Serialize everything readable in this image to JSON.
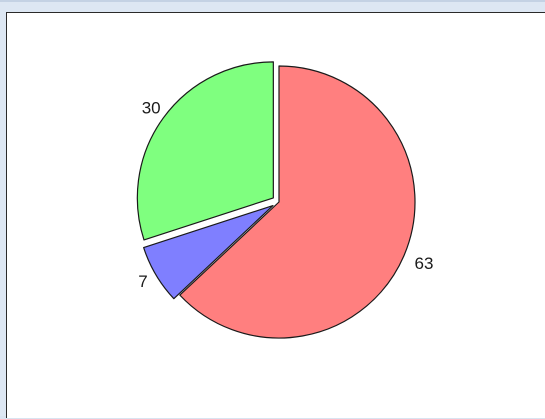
{
  "chart_data": {
    "type": "pie",
    "slices": [
      {
        "label": "63",
        "value": 63,
        "color": "#ff7f7f",
        "exploded": false
      },
      {
        "label": "7",
        "value": 7,
        "color": "#7f7fff",
        "exploded": true
      },
      {
        "label": "30",
        "value": 30,
        "color": "#7fff7f",
        "exploded": true
      }
    ],
    "start_angle_deg": 0,
    "direction": "clockwise",
    "outline_color": "#1a1a1a"
  }
}
